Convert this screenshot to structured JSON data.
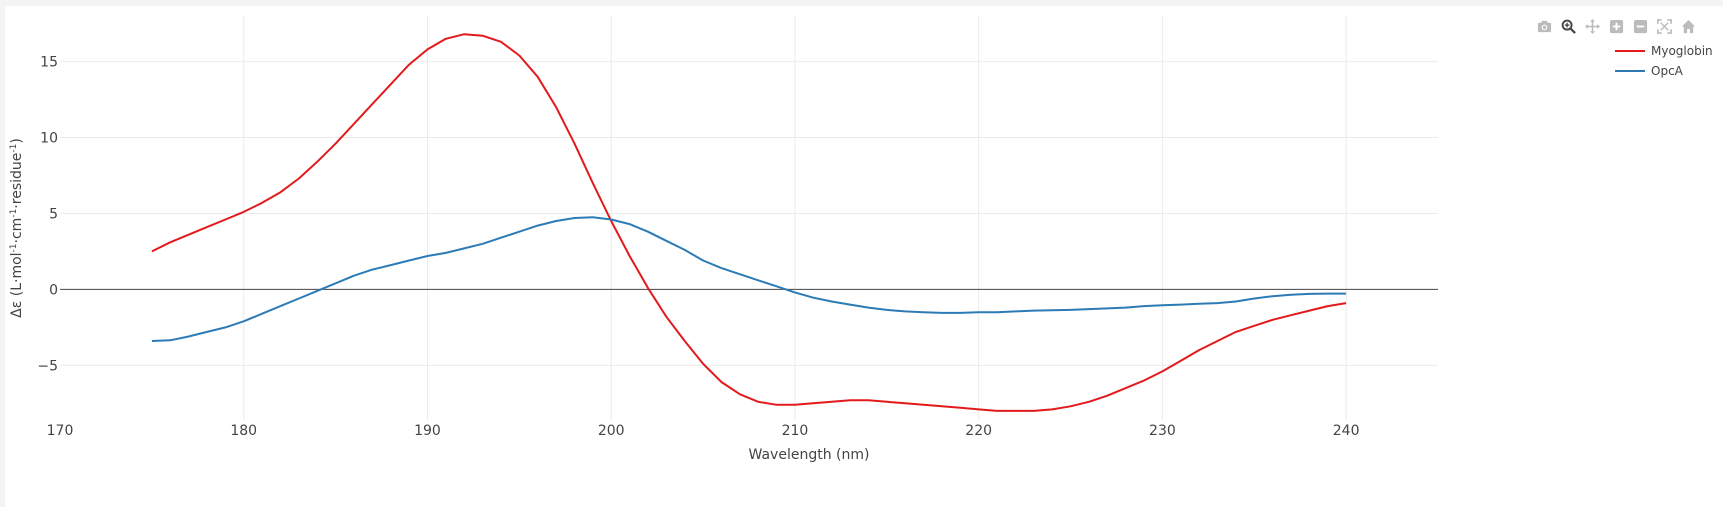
{
  "chart_data": {
    "type": "line",
    "xlabel": "Wavelength (nm)",
    "ylabel": {
      "parts": [
        {
          "t": "Δε (L·mol",
          "sup": false
        },
        {
          "t": "-1",
          "sup": true
        },
        {
          "t": "·cm",
          "sup": false
        },
        {
          "t": "-1",
          "sup": true
        },
        {
          "t": "·residue",
          "sup": false
        },
        {
          "t": "-1",
          "sup": true
        },
        {
          "t": ")",
          "sup": false
        }
      ]
    },
    "xlim": [
      170,
      245
    ],
    "ylim": [
      -8.6,
      18.0
    ],
    "x_ticks": [
      170,
      180,
      190,
      200,
      210,
      220,
      230,
      240
    ],
    "x_tick_labels": [
      "170",
      "180",
      "190",
      "200",
      "210",
      "220",
      "230",
      "240"
    ],
    "y_ticks": [
      -5,
      0,
      5,
      10,
      15
    ],
    "y_tick_labels": [
      "−5",
      "0",
      "5",
      "10",
      "15"
    ],
    "grid": true,
    "zero_line": true,
    "legend_position": "top-right",
    "series": [
      {
        "name": "Myoglobin",
        "color": "#e31a1c",
        "x": [
          175,
          176,
          177,
          178,
          179,
          180,
          181,
          182,
          183,
          184,
          185,
          186,
          187,
          188,
          189,
          190,
          191,
          192,
          193,
          194,
          195,
          196,
          197,
          198,
          199,
          200,
          201,
          202,
          203,
          204,
          205,
          206,
          207,
          208,
          209,
          210,
          211,
          212,
          213,
          214,
          215,
          216,
          217,
          218,
          219,
          220,
          221,
          222,
          223,
          224,
          225,
          226,
          227,
          228,
          229,
          230,
          231,
          232,
          233,
          234,
          235,
          236,
          237,
          238,
          239,
          240
        ],
        "y": [
          2.5,
          3.1,
          3.6,
          4.1,
          4.6,
          5.1,
          5.7,
          6.4,
          7.3,
          8.4,
          9.6,
          10.9,
          12.2,
          13.5,
          14.8,
          15.8,
          16.5,
          16.8,
          16.7,
          16.3,
          15.4,
          14.0,
          12.0,
          9.6,
          7.0,
          4.5,
          2.2,
          0.1,
          -1.8,
          -3.4,
          -4.9,
          -6.1,
          -6.9,
          -7.4,
          -7.6,
          -7.6,
          -7.5,
          -7.4,
          -7.3,
          -7.3,
          -7.4,
          -7.5,
          -7.6,
          -7.7,
          -7.8,
          -7.9,
          -8.0,
          -8.0,
          -8.0,
          -7.9,
          -7.7,
          -7.4,
          -7.0,
          -6.5,
          -6.0,
          -5.4,
          -4.7,
          -4.0,
          -3.4,
          -2.8,
          -2.4,
          -2.0,
          -1.7,
          -1.4,
          -1.1,
          -0.9
        ]
      },
      {
        "name": "OpcA",
        "color": "#2c7bb6",
        "x": [
          175,
          176,
          177,
          178,
          179,
          180,
          181,
          182,
          183,
          184,
          185,
          186,
          187,
          188,
          189,
          190,
          191,
          192,
          193,
          194,
          195,
          196,
          197,
          198,
          199,
          200,
          201,
          202,
          203,
          204,
          205,
          206,
          207,
          208,
          209,
          210,
          211,
          212,
          213,
          214,
          215,
          216,
          217,
          218,
          219,
          220,
          221,
          222,
          223,
          224,
          225,
          226,
          227,
          228,
          229,
          230,
          231,
          232,
          233,
          234,
          235,
          236,
          237,
          238,
          239,
          240
        ],
        "y": [
          -3.4,
          -3.35,
          -3.1,
          -2.8,
          -2.5,
          -2.1,
          -1.6,
          -1.1,
          -0.6,
          -0.1,
          0.4,
          0.9,
          1.3,
          1.6,
          1.9,
          2.2,
          2.4,
          2.7,
          3.0,
          3.4,
          3.8,
          4.2,
          4.5,
          4.7,
          4.75,
          4.6,
          4.3,
          3.8,
          3.2,
          2.6,
          1.9,
          1.4,
          1.0,
          0.6,
          0.2,
          -0.2,
          -0.55,
          -0.8,
          -1.0,
          -1.2,
          -1.35,
          -1.45,
          -1.5,
          -1.55,
          -1.55,
          -1.5,
          -1.5,
          -1.45,
          -1.4,
          -1.38,
          -1.35,
          -1.3,
          -1.25,
          -1.2,
          -1.1,
          -1.05,
          -1.0,
          -0.95,
          -0.9,
          -0.8,
          -0.6,
          -0.45,
          -0.35,
          -0.3,
          -0.28,
          -0.28
        ]
      }
    ]
  },
  "toolbar": {
    "icons": [
      "camera-icon",
      "zoom-icon",
      "pan-icon",
      "zoom-in-icon",
      "zoom-out-icon",
      "autoscale-icon",
      "home-icon"
    ]
  }
}
